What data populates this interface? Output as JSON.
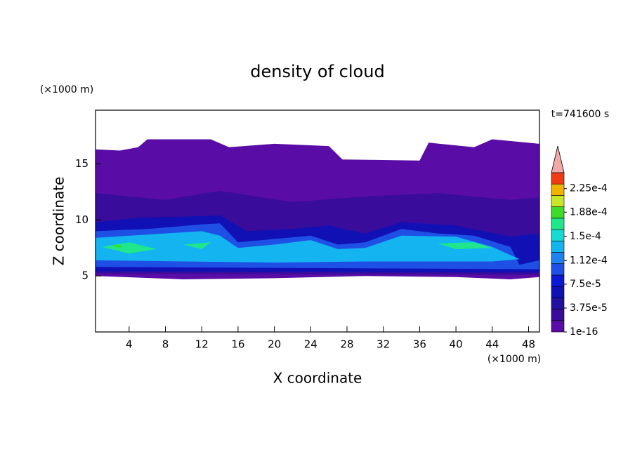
{
  "chart_data": {
    "type": "contour",
    "title": "density of cloud",
    "xlabel": "X coordinate",
    "ylabel": "Z coordinate",
    "x_unit_label": "(×1000 m)",
    "y_unit_label": "(×1000 m)",
    "annotation": "t=741600 s",
    "xlim": [
      0.3,
      49.2
    ],
    "ylim": [
      0,
      19.8
    ],
    "xticks": [
      4,
      8,
      12,
      16,
      20,
      24,
      28,
      32,
      36,
      40,
      44,
      48
    ],
    "yticks": [
      5,
      10,
      15
    ],
    "colorbar": {
      "clim": [
        1e-16,
        0.00025
      ],
      "ticks": [
        1e-16,
        {
          "value": 3.75e-05,
          "label": "3.75e-5"
        },
        {
          "value": 7.5e-05,
          "label": "7.5e-5"
        },
        {
          "value": 0.000112,
          "label": "1.12e-4"
        },
        {
          "value": 0.00015,
          "label": "1.5e-4"
        },
        {
          "value": 0.000188,
          "label": "1.88e-4"
        },
        {
          "value": 0.000225,
          "label": "2.25e-4"
        }
      ],
      "colors": [
        "#5a0ca6",
        "#3a0c9c",
        "#22109e",
        "#1010b4",
        "#0c18d2",
        "#1e50e6",
        "#1e82f0",
        "#14b4f0",
        "#14dcd2",
        "#20e68c",
        "#3cdc28",
        "#c8e628",
        "#f0b400",
        "#f03c14"
      ],
      "extend_color": "#f0a8a8"
    },
    "regions": [
      {
        "band": 0,
        "outline": [
          [
            0.3,
            16.3
          ],
          [
            3,
            16.2
          ],
          [
            5,
            16.5
          ],
          [
            6,
            17.2
          ],
          [
            13,
            17.2
          ],
          [
            15,
            16.5
          ],
          [
            20,
            16.8
          ],
          [
            26,
            16.6
          ],
          [
            27.5,
            15.4
          ],
          [
            36,
            15.3
          ],
          [
            37,
            16.9
          ],
          [
            42,
            16.5
          ],
          [
            44,
            17.2
          ],
          [
            49.2,
            16.8
          ],
          [
            49.2,
            4.9
          ],
          [
            46,
            4.7
          ],
          [
            40,
            4.9
          ],
          [
            30,
            5.0
          ],
          [
            20,
            4.8
          ],
          [
            10,
            4.7
          ],
          [
            0.3,
            5.0
          ]
        ]
      },
      {
        "band": 1,
        "outline": [
          [
            0.3,
            12.4
          ],
          [
            8,
            11.8
          ],
          [
            14,
            12.6
          ],
          [
            22,
            11.6
          ],
          [
            30,
            12.1
          ],
          [
            38,
            12.4
          ],
          [
            46,
            11.8
          ],
          [
            49.2,
            12.0
          ],
          [
            49.2,
            5.1
          ],
          [
            0.3,
            5.2
          ]
        ]
      },
      {
        "band": 3,
        "outline": [
          [
            0.3,
            9.8
          ],
          [
            5,
            10.2
          ],
          [
            10,
            10.3
          ],
          [
            14,
            10.4
          ],
          [
            17,
            9.0
          ],
          [
            22,
            9.2
          ],
          [
            26,
            9.5
          ],
          [
            30,
            8.8
          ],
          [
            34,
            9.8
          ],
          [
            40,
            9.5
          ],
          [
            46,
            8.5
          ],
          [
            49.2,
            8.8
          ],
          [
            49.2,
            5.3
          ],
          [
            0.3,
            5.4
          ]
        ]
      },
      {
        "band": 5,
        "outline": [
          [
            0.3,
            9.0
          ],
          [
            6,
            9.2
          ],
          [
            12,
            9.6
          ],
          [
            14,
            9.7
          ],
          [
            16,
            8.0
          ],
          [
            20,
            8.3
          ],
          [
            24,
            8.6
          ],
          [
            27,
            7.8
          ],
          [
            30,
            8.0
          ],
          [
            34,
            9.2
          ],
          [
            38,
            8.8
          ],
          [
            42,
            8.6
          ],
          [
            46,
            7.6
          ],
          [
            47,
            6.0
          ],
          [
            49.2,
            6.4
          ],
          [
            49.2,
            5.6
          ],
          [
            0.3,
            5.8
          ]
        ]
      },
      {
        "band": 7,
        "outline": [
          [
            0.3,
            8.4
          ],
          [
            6,
            8.7
          ],
          [
            12,
            9.0
          ],
          [
            14,
            8.6
          ],
          [
            16,
            7.5
          ],
          [
            20,
            7.8
          ],
          [
            24,
            8.2
          ],
          [
            27,
            7.4
          ],
          [
            30,
            7.5
          ],
          [
            34,
            8.6
          ],
          [
            40,
            8.5
          ],
          [
            44,
            7.6
          ],
          [
            47,
            6.5
          ],
          [
            44,
            6.3
          ],
          [
            30,
            6.3
          ],
          [
            20,
            6.2
          ],
          [
            10,
            6.3
          ],
          [
            0.3,
            6.4
          ]
        ]
      },
      {
        "band": 9,
        "outline": [
          [
            1,
            7.6
          ],
          [
            4,
            8.0
          ],
          [
            7,
            7.4
          ],
          [
            4,
            7.0
          ]
        ]
      },
      {
        "band": 9,
        "outline": [
          [
            10,
            7.8
          ],
          [
            13,
            8.0
          ],
          [
            12,
            7.4
          ]
        ]
      },
      {
        "band": 9,
        "outline": [
          [
            38,
            7.9
          ],
          [
            42,
            8.0
          ],
          [
            44,
            7.5
          ],
          [
            40,
            7.4
          ]
        ]
      },
      {
        "band": 10,
        "outline": [
          [
            2,
            7.7
          ],
          [
            3,
            7.8
          ],
          [
            3.2,
            7.5
          ]
        ]
      }
    ]
  }
}
